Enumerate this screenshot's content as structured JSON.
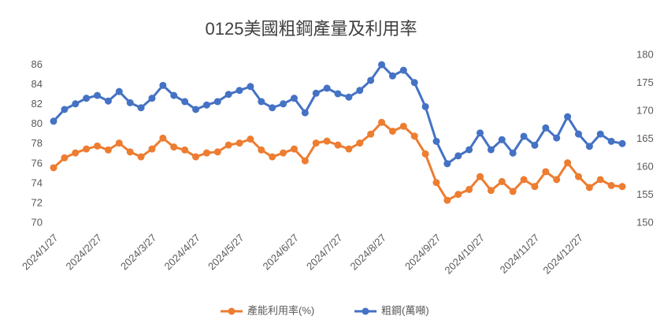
{
  "chart_data": {
    "type": "line",
    "title": "0125美國粗鋼產量及利用率",
    "categories": [
      "2024/1/27",
      null,
      null,
      null,
      "2024/2/27",
      null,
      null,
      null,
      null,
      "2024/3/27",
      null,
      null,
      null,
      "2024/4/27",
      null,
      null,
      null,
      "2024/5/27",
      null,
      null,
      null,
      null,
      "2024/6/27",
      null,
      null,
      null,
      "2024/7/27",
      null,
      null,
      null,
      "2024/8/27",
      null,
      null,
      null,
      null,
      "2024/9/27",
      null,
      null,
      null,
      "2024/10/27",
      null,
      null,
      null,
      null,
      "2024/11/27",
      null,
      null,
      null,
      "2024/12/27",
      null,
      null,
      null,
      null
    ],
    "series": [
      {
        "name": "產能利用率(%)",
        "color": "#ed7d31",
        "axis": "y",
        "values": [
          75.6,
          76.6,
          77.1,
          77.5,
          77.8,
          77.4,
          78.1,
          77.2,
          76.7,
          77.5,
          78.6,
          77.7,
          77.4,
          76.7,
          77.1,
          77.2,
          77.9,
          78.1,
          78.5,
          77.4,
          76.7,
          77.1,
          77.5,
          76.3,
          78.1,
          78.3,
          77.9,
          77.5,
          78.1,
          79.0,
          80.2,
          79.3,
          79.8,
          78.8,
          77.0,
          74.1,
          72.3,
          72.9,
          73.4,
          74.7,
          73.3,
          74.2,
          73.2,
          74.4,
          73.7,
          75.2,
          74.4,
          76.1,
          74.7,
          73.6,
          74.4,
          73.8,
          73.7
        ]
      },
      {
        "name": "粗鋼(萬噸)",
        "color": "#4472c4",
        "axis": "y2",
        "values": [
          168.2,
          170.3,
          171.3,
          172.3,
          172.8,
          171.8,
          173.5,
          171.5,
          170.6,
          172.3,
          174.6,
          172.8,
          171.7,
          170.3,
          171.1,
          171.7,
          173.0,
          173.7,
          174.4,
          171.7,
          170.6,
          171.3,
          172.3,
          169.7,
          173.2,
          174.1,
          173.1,
          172.5,
          173.7,
          175.5,
          178.3,
          176.3,
          177.3,
          175.1,
          170.8,
          164.6,
          160.6,
          162.0,
          163.1,
          166.1,
          163.1,
          164.9,
          162.5,
          165.5,
          163.9,
          167.0,
          165.2,
          169.0,
          165.9,
          163.7,
          165.9,
          164.6,
          164.2
        ]
      }
    ],
    "ylim": [
      70,
      87
    ],
    "yticks": [
      70,
      72,
      74,
      76,
      78,
      80,
      82,
      84,
      86
    ],
    "y2lim": [
      150,
      180
    ],
    "y2ticks": [
      150,
      155,
      160,
      165,
      170,
      175,
      180
    ],
    "grid": false,
    "legend": "bottom"
  }
}
